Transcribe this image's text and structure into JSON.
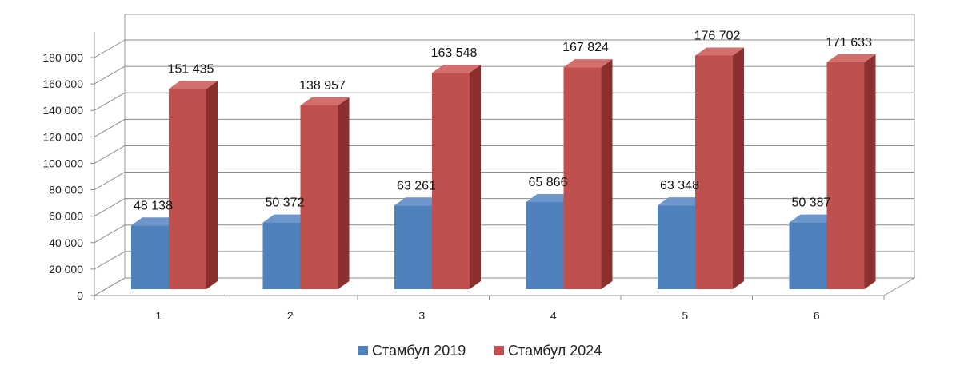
{
  "chart_data": {
    "type": "bar",
    "categories": [
      "1",
      "2",
      "3",
      "4",
      "5",
      "6"
    ],
    "series": [
      {
        "name": "Стамбул 2019",
        "values": [
          48138,
          50372,
          63261,
          65866,
          63348,
          50387
        ],
        "labels": [
          "48 138",
          "50 372",
          "63 261",
          "65 866",
          "63 348",
          "50 387"
        ],
        "color": "#4f81bd"
      },
      {
        "name": "Стамбул 2024",
        "values": [
          151435,
          138957,
          163548,
          167824,
          176702,
          171633
        ],
        "labels": [
          "151 435",
          "138 957",
          "163 548",
          "167 824",
          "176 702",
          "171 633"
        ],
        "color": "#c0504d"
      }
    ],
    "y_ticks": [
      0,
      20000,
      40000,
      60000,
      80000,
      100000,
      120000,
      140000,
      160000,
      180000
    ],
    "y_tick_labels": [
      "0",
      "20 000",
      "40 000",
      "60 000",
      "80 000",
      "100 000",
      "120 000",
      "140 000",
      "160 000",
      "180 000"
    ],
    "ylim": [
      0,
      180000
    ],
    "title": "",
    "xlabel": "",
    "ylabel": "",
    "grid": true,
    "legend_position": "bottom",
    "style": "3d-clustered-column"
  }
}
